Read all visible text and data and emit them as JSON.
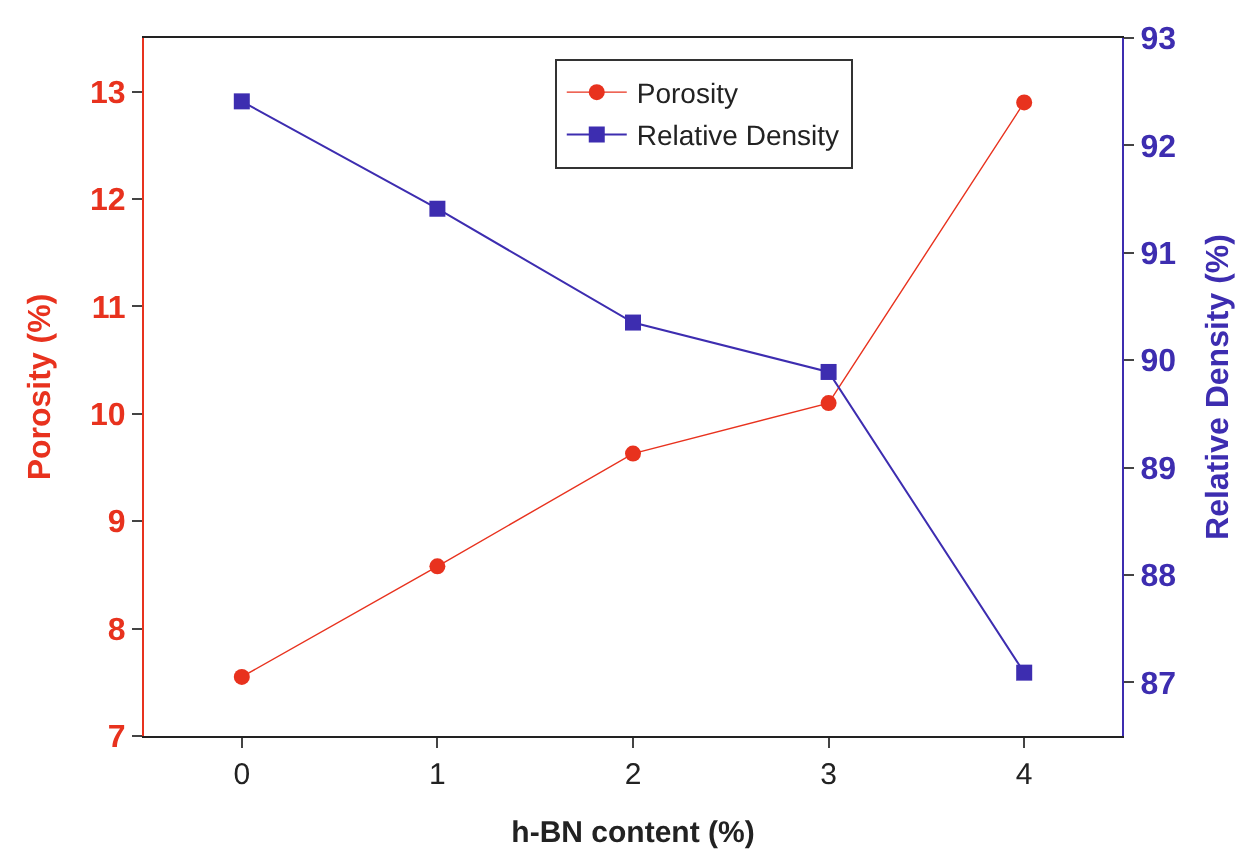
{
  "chart_data": {
    "type": "line",
    "xlabel": "h-BN content (%)",
    "ylabel": "Porosity (%)",
    "y2label": "Relative Density (%)",
    "x": [
      0,
      1,
      2,
      3,
      4
    ],
    "series": [
      {
        "name": "Porosity",
        "color": "#e8321e",
        "values": [
          7.55,
          8.58,
          9.63,
          10.1,
          12.9
        ],
        "marker": "circle"
      },
      {
        "name": "Relative Density",
        "color": "#3d2db0",
        "values": [
          92.41,
          91.41,
          90.35,
          89.89,
          87.09
        ],
        "marker": "square",
        "axis": "y2"
      }
    ],
    "xlim": [
      -0.5,
      4.5
    ],
    "xticks": [
      0,
      1,
      2,
      3,
      4
    ],
    "ylim": [
      7,
      13.5
    ],
    "yticks": [
      7,
      8,
      9,
      10,
      11,
      12,
      13
    ],
    "y2lim": [
      86.5,
      93
    ],
    "y2ticks": [
      87,
      88,
      89,
      90,
      91,
      92,
      93
    ],
    "legend": "top",
    "line_style": "solid"
  }
}
